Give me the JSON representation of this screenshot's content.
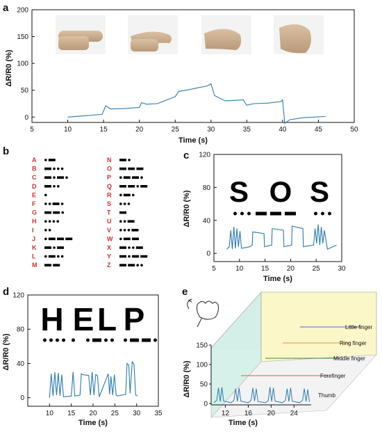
{
  "chart_data": [
    {
      "panel": "a",
      "type": "line",
      "xlabel": "Time (s)",
      "ylabel": "ΔR/R0 (%)",
      "xlim": [
        5,
        50
      ],
      "ylim": [
        -10,
        200
      ],
      "xticks": [
        5,
        10,
        15,
        20,
        25,
        30,
        35,
        40,
        45,
        50
      ],
      "yticks": [
        0,
        50,
        100,
        150,
        200
      ],
      "line_color": "#2a7ab0",
      "series": [
        {
          "x": [
            10,
            12,
            14.8,
            15.3,
            16,
            18,
            20,
            20.3,
            21,
            22.5,
            25,
            25.5,
            26.5,
            28,
            29.5,
            30,
            30.5,
            32,
            34.5,
            35,
            36,
            38,
            39.8,
            40,
            40.3,
            41,
            43,
            46
          ],
          "y": [
            0,
            2,
            5,
            21,
            15,
            16,
            18,
            27,
            24,
            25,
            38,
            48,
            50,
            54,
            58,
            62,
            40,
            30,
            32,
            22,
            25,
            26,
            29,
            32,
            -12,
            -5,
            -1,
            1
          ]
        }
      ]
    },
    {
      "panel": "b",
      "type": "table",
      "rows_left": [
        {
          "letter": "A",
          "code": ".-"
        },
        {
          "letter": "B",
          "code": "-..."
        },
        {
          "letter": "C",
          "code": "-.-."
        },
        {
          "letter": "D",
          "code": "-.."
        },
        {
          "letter": "E",
          "code": "."
        },
        {
          "letter": "F",
          "code": "..-."
        },
        {
          "letter": "G",
          "code": "--."
        },
        {
          "letter": "H",
          "code": "...."
        },
        {
          "letter": "I",
          "code": ".."
        },
        {
          "letter": "J",
          "code": ".---"
        },
        {
          "letter": "K",
          "code": "-.-"
        },
        {
          "letter": "L",
          "code": ".-.."
        },
        {
          "letter": "M",
          "code": "--"
        }
      ],
      "rows_right": [
        {
          "letter": "N",
          "code": "-."
        },
        {
          "letter": "O",
          "code": "---"
        },
        {
          "letter": "P",
          "code": ".--."
        },
        {
          "letter": "Q",
          "code": "--.-"
        },
        {
          "letter": "R",
          "code": ".-."
        },
        {
          "letter": "S",
          "code": "..."
        },
        {
          "letter": "T",
          "code": "-"
        },
        {
          "letter": "U",
          "code": "..-"
        },
        {
          "letter": "V",
          "code": "...-"
        },
        {
          "letter": "W",
          "code": ".--"
        },
        {
          "letter": "X",
          "code": "-..-"
        },
        {
          "letter": "Y",
          "code": "-.--"
        },
        {
          "letter": "Z",
          "code": "--.."
        }
      ]
    },
    {
      "panel": "c",
      "type": "line",
      "xlabel": "Time (s)",
      "ylabel": "ΔR/R0 (%)",
      "xlim": [
        5,
        30
      ],
      "ylim": [
        -10,
        120
      ],
      "xticks": [
        5,
        10,
        15,
        20,
        25,
        30
      ],
      "yticks": [
        0,
        40,
        80,
        120
      ],
      "letters": [
        "S",
        "O",
        "S"
      ],
      "morse": [
        "...",
        "---",
        "..."
      ],
      "line_color": "#2a7ab0",
      "series": [
        {
          "x": [
            7.5,
            8,
            8.3,
            8.6,
            8.9,
            9.2,
            9.5,
            9.8,
            10.1,
            10.4,
            12,
            12.5,
            12.6,
            14.8,
            14.9,
            16.3,
            16.4,
            18.6,
            18.7,
            20.2,
            20.3,
            22.4,
            22.5,
            24.5,
            24.8,
            25.1,
            25.4,
            25.7,
            26,
            26.3,
            26.6,
            27.2,
            29
          ],
          "y": [
            5,
            8,
            28,
            5,
            32,
            6,
            30,
            8,
            27,
            6,
            8,
            10,
            26,
            24,
            8,
            10,
            30,
            28,
            8,
            10,
            33,
            30,
            8,
            10,
            30,
            12,
            35,
            10,
            32,
            12,
            28,
            5,
            10
          ]
        }
      ]
    },
    {
      "panel": "d",
      "type": "line",
      "xlabel": "Time (s)",
      "ylabel": "ΔR/R0 (%)",
      "xlim": [
        5,
        35
      ],
      "ylim": [
        -10,
        120
      ],
      "xticks": [
        10,
        15,
        20,
        25,
        30,
        35
      ],
      "yticks": [
        0,
        40,
        80,
        120
      ],
      "letters": [
        "H",
        "E",
        "L",
        "P"
      ],
      "morse": [
        "....",
        ".",
        ".-..",
        ".--."
      ],
      "line_color": "#2a7ab0",
      "series": [
        {
          "x": [
            10,
            10.4,
            10.8,
            11.2,
            11.6,
            12,
            12.4,
            12.8,
            13.2,
            15,
            15.4,
            15.8,
            17,
            17.3,
            17.5,
            19,
            19.4,
            19.8,
            20.2,
            20.6,
            21,
            21.4,
            23.5,
            23.8,
            24.1,
            24.5,
            24.9,
            25.3,
            25.6,
            27.5,
            27.8,
            28.2,
            28.5,
            29,
            29.4,
            29.8,
            30.2
          ],
          "y": [
            0,
            28,
            2,
            30,
            3,
            29,
            2,
            27,
            1,
            2,
            30,
            2,
            3,
            28,
            27,
            26,
            3,
            30,
            3,
            27,
            26,
            1,
            28,
            4,
            25,
            3,
            27,
            3,
            2,
            4,
            40,
            38,
            5,
            42,
            39,
            3,
            2
          ]
        }
      ]
    },
    {
      "panel": "e",
      "type": "line",
      "xlabel": "Time (s)",
      "ylabel": "ΔR/R0 (%)",
      "xticks": [
        12,
        16,
        20,
        24
      ],
      "yticks": [
        0,
        50,
        100,
        150
      ],
      "series": [
        {
          "name": "Little finger",
          "color": "#5b5bd6"
        },
        {
          "name": "Ring finger",
          "color": "#f08a3e"
        },
        {
          "name": "Middle finger",
          "color": "#3a8a3a"
        },
        {
          "name": "Forefinger",
          "color": "#e05a3a"
        },
        {
          "name": "Thumb",
          "color": "#2a7ab0",
          "x": [
            10,
            10.5,
            10.8,
            11.1,
            11.4,
            11.7,
            13,
            13.5,
            13.8,
            14.1,
            14.4,
            14.7,
            16,
            16.5,
            16.8,
            17.1,
            17.4,
            17.7,
            19,
            19.5,
            19.8,
            20.1,
            20.4,
            20.7,
            22,
            22.5,
            22.8,
            23.1,
            23.4,
            23.7,
            25,
            25.5,
            25.8,
            26.1,
            26.4,
            26.7
          ],
          "y": [
            2,
            8,
            40,
            5,
            42,
            6,
            2,
            8,
            38,
            5,
            40,
            6,
            2,
            8,
            40,
            6,
            38,
            5,
            2,
            7,
            42,
            5,
            40,
            6,
            2,
            8,
            38,
            5,
            40,
            6,
            2,
            8,
            38,
            5,
            36,
            4
          ]
        }
      ]
    }
  ],
  "panel_labels": {
    "a": "a",
    "b": "b",
    "c": "c",
    "d": "d",
    "e": "e"
  }
}
